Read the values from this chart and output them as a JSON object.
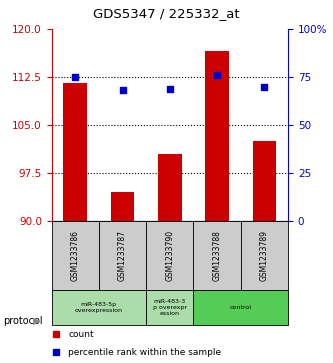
{
  "title": "GDS5347 / 225332_at",
  "samples": [
    "GSM1233786",
    "GSM1233787",
    "GSM1233790",
    "GSM1233788",
    "GSM1233789"
  ],
  "bar_values": [
    111.5,
    94.5,
    100.5,
    116.5,
    102.5
  ],
  "scatter_values": [
    75,
    68,
    69,
    76,
    70
  ],
  "ylim_left": [
    90,
    120
  ],
  "ylim_right": [
    0,
    100
  ],
  "yticks_left": [
    90,
    97.5,
    105,
    112.5,
    120
  ],
  "yticks_right": [
    0,
    25,
    50,
    75,
    100
  ],
  "bar_color": "#cc0000",
  "scatter_color": "#0000cc",
  "left_axis_color": "#cc0000",
  "right_axis_color": "#0000cc",
  "proto_groups": [
    {
      "start": 0,
      "end": 1,
      "label": "miR-483-5p\noverexpression",
      "color": "#aaddaa"
    },
    {
      "start": 2,
      "end": 2,
      "label": "miR-483-3\np overexpr\nession",
      "color": "#aaddaa"
    },
    {
      "start": 3,
      "end": 4,
      "label": "control",
      "color": "#55cc55"
    }
  ],
  "legend_count_label": "count",
  "legend_pct_label": "percentile rank within the sample",
  "protocol_label": "protocol"
}
